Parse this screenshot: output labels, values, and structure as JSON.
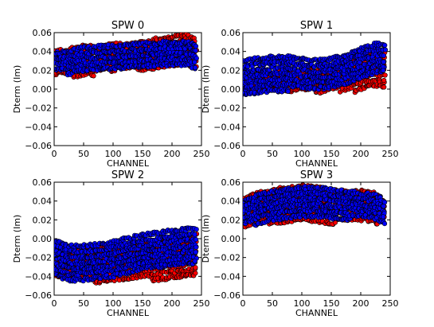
{
  "chart_data": [
    {
      "type": "scatter",
      "title": "SPW 0",
      "xlabel": "CHANNEL",
      "ylabel": "Dterm (Im)",
      "xlim": [
        0,
        250
      ],
      "ylim": [
        -0.06,
        0.06
      ],
      "xticks": [
        "0",
        "50",
        "100",
        "150",
        "200",
        "250"
      ],
      "yticks": [
        "−0.06",
        "−0.04",
        "−0.02",
        "0.00",
        "0.02",
        "0.04",
        "0.06"
      ],
      "x": [
        0,
        25,
        50,
        75,
        100,
        125,
        150,
        175,
        200,
        225,
        240
      ],
      "series": [
        {
          "color": "#ff0000",
          "lower": [
            0.012,
            0.014,
            0.012,
            0.016,
            0.018,
            0.02,
            0.019,
            0.02,
            0.022,
            0.024,
            0.022
          ],
          "upper": [
            0.04,
            0.042,
            0.046,
            0.044,
            0.048,
            0.047,
            0.05,
            0.053,
            0.055,
            0.058,
            0.052
          ]
        },
        {
          "color": "#0000ff",
          "lower": [
            0.016,
            0.016,
            0.018,
            0.02,
            0.02,
            0.022,
            0.022,
            0.024,
            0.024,
            0.024,
            0.022
          ],
          "upper": [
            0.038,
            0.04,
            0.044,
            0.045,
            0.046,
            0.047,
            0.048,
            0.049,
            0.05,
            0.05,
            0.046
          ]
        }
      ]
    },
    {
      "type": "scatter",
      "title": "SPW 1",
      "xlabel": "CHANNEL",
      "ylabel": "Dterm (Im)",
      "xlim": [
        0,
        250
      ],
      "ylim": [
        -0.06,
        0.06
      ],
      "xticks": [
        "0",
        "50",
        "100",
        "150",
        "200",
        "250"
      ],
      "yticks": [
        "−0.06",
        "−0.04",
        "−0.02",
        "0.00",
        "0.02",
        "0.04",
        "0.06"
      ],
      "x": [
        0,
        25,
        50,
        75,
        100,
        125,
        150,
        175,
        200,
        225,
        240
      ],
      "series": [
        {
          "color": "#ff0000",
          "lower": [
            -0.006,
            -0.006,
            -0.004,
            -0.004,
            -0.002,
            -0.004,
            -0.002,
            -0.002,
            -0.002,
            0.0,
            0.002
          ],
          "upper": [
            0.016,
            0.016,
            0.018,
            0.016,
            0.018,
            0.02,
            0.024,
            0.03,
            0.036,
            0.04,
            0.038
          ]
        },
        {
          "color": "#0000ff",
          "lower": [
            -0.006,
            -0.004,
            -0.004,
            -0.002,
            0.0,
            0.0,
            0.002,
            0.006,
            0.012,
            0.016,
            0.014
          ],
          "upper": [
            0.03,
            0.032,
            0.034,
            0.034,
            0.032,
            0.03,
            0.032,
            0.036,
            0.042,
            0.048,
            0.048
          ]
        }
      ]
    },
    {
      "type": "scatter",
      "title": "SPW 2",
      "xlabel": "CHANNEL",
      "ylabel": "Dterm (Im)",
      "xlim": [
        0,
        250
      ],
      "ylim": [
        -0.06,
        0.06
      ],
      "xticks": [
        "0",
        "50",
        "100",
        "150",
        "200",
        "250"
      ],
      "yticks": [
        "−0.06",
        "−0.04",
        "−0.02",
        "0.00",
        "0.02",
        "0.04",
        "0.06"
      ],
      "x": [
        0,
        25,
        50,
        75,
        100,
        125,
        150,
        175,
        200,
        225,
        240
      ],
      "series": [
        {
          "color": "#ff0000",
          "lower": [
            -0.04,
            -0.044,
            -0.046,
            -0.046,
            -0.046,
            -0.046,
            -0.044,
            -0.044,
            -0.042,
            -0.042,
            -0.04
          ],
          "upper": [
            -0.008,
            -0.012,
            -0.012,
            -0.01,
            -0.008,
            -0.006,
            -0.004,
            -0.002,
            0.0,
            0.002,
            0.004
          ]
        },
        {
          "color": "#0000ff",
          "lower": [
            -0.042,
            -0.044,
            -0.046,
            -0.044,
            -0.044,
            -0.04,
            -0.036,
            -0.032,
            -0.028,
            -0.026,
            -0.026
          ],
          "upper": [
            -0.002,
            -0.008,
            -0.008,
            -0.006,
            -0.004,
            0.0,
            0.004,
            0.006,
            0.008,
            0.01,
            0.01
          ]
        }
      ]
    },
    {
      "type": "scatter",
      "title": "SPW 3",
      "xlabel": "CHANNEL",
      "ylabel": "Dterm (Im)",
      "xlim": [
        0,
        250
      ],
      "ylim": [
        -0.06,
        0.06
      ],
      "xticks": [
        "0",
        "50",
        "100",
        "150",
        "200",
        "250"
      ],
      "yticks": [
        "−0.06",
        "−0.04",
        "−0.02",
        "0.00",
        "0.02",
        "0.04",
        "0.06"
      ],
      "x": [
        0,
        25,
        50,
        75,
        100,
        125,
        150,
        175,
        200,
        225,
        240
      ],
      "series": [
        {
          "color": "#ff0000",
          "lower": [
            0.01,
            0.014,
            0.016,
            0.018,
            0.02,
            0.018,
            0.016,
            0.016,
            0.016,
            0.014,
            0.016
          ],
          "upper": [
            0.042,
            0.048,
            0.052,
            0.054,
            0.056,
            0.054,
            0.052,
            0.05,
            0.05,
            0.048,
            0.04
          ]
        },
        {
          "color": "#0000ff",
          "lower": [
            0.012,
            0.016,
            0.02,
            0.022,
            0.022,
            0.022,
            0.022,
            0.02,
            0.02,
            0.018,
            0.016
          ],
          "upper": [
            0.04,
            0.046,
            0.05,
            0.052,
            0.054,
            0.054,
            0.052,
            0.05,
            0.048,
            0.046,
            0.04
          ]
        }
      ]
    }
  ]
}
